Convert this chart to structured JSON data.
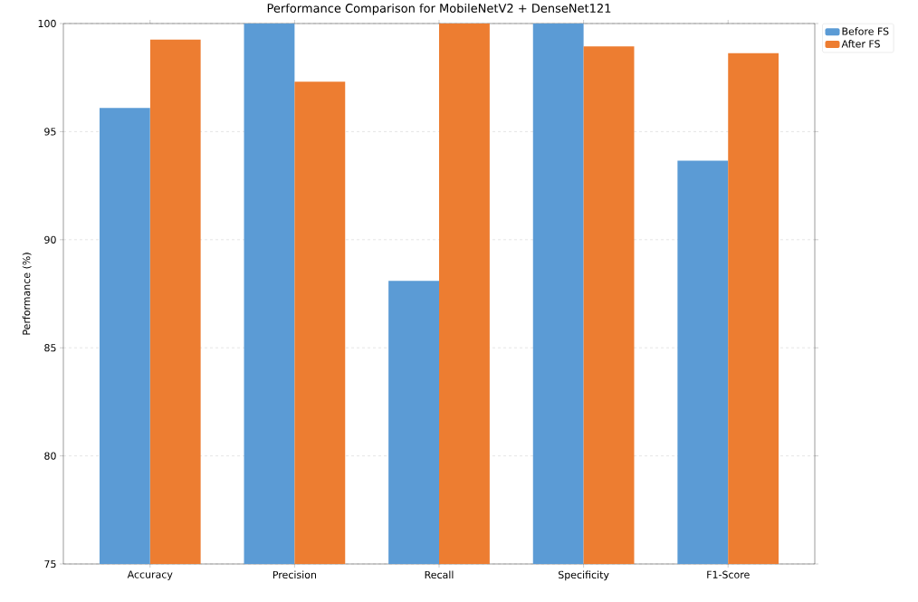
{
  "chart_data": {
    "type": "bar",
    "title": "Performance Comparison for MobileNetV2 + DenseNet121",
    "ylabel": "Performance (%)",
    "categories": [
      "Accuracy",
      "Precision",
      "Recall",
      "Specificity",
      "F1-Score"
    ],
    "series": [
      {
        "name": "Before FS",
        "color": "#5b9bd5",
        "values": [
          96.1,
          100,
          88.1,
          100,
          93.66
        ]
      },
      {
        "name": "After FS",
        "color": "#ed7d31",
        "values": [
          99.26,
          97.31,
          100,
          98.94,
          98.63
        ]
      }
    ],
    "ylim": [
      75,
      100
    ],
    "yticks": [
      75,
      80,
      85,
      90,
      95,
      100
    ],
    "grid": "y",
    "legend": "top right"
  }
}
